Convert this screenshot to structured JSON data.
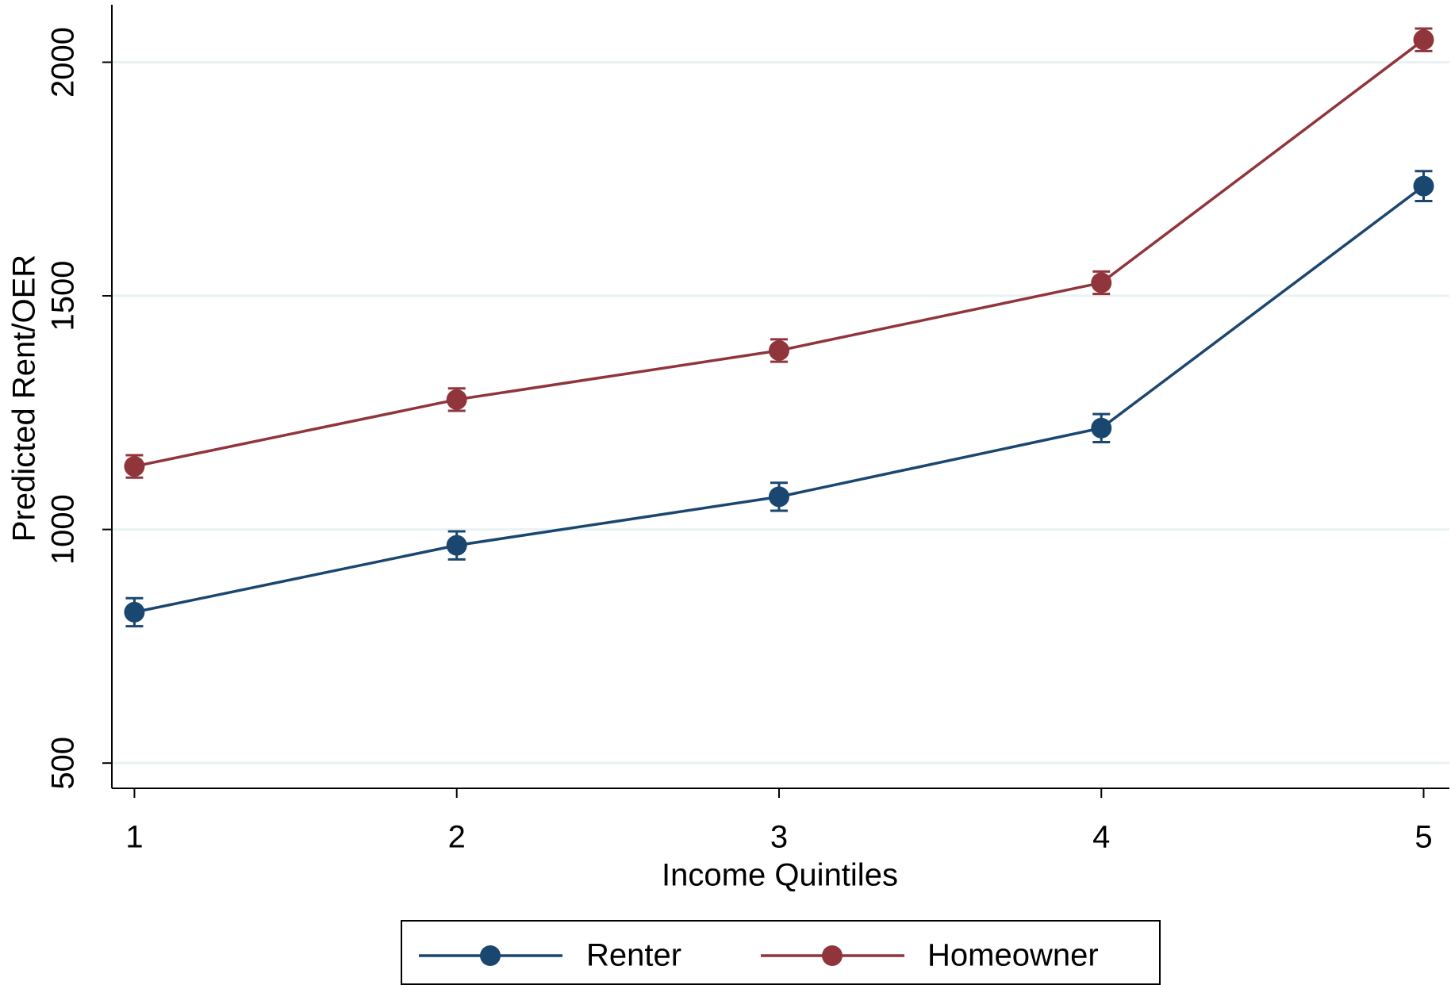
{
  "chart_data": {
    "type": "line",
    "x_label": "Income Quintiles",
    "y_label": "Predicted Rent/OER",
    "x": [
      1,
      2,
      3,
      4,
      5
    ],
    "series": [
      {
        "name": "Renter",
        "color": "#1a476f",
        "values": [
          823,
          966,
          1070,
          1217,
          1735
        ],
        "errors": [
          30,
          30,
          30,
          30,
          32
        ]
      },
      {
        "name": "Homeowner",
        "color": "#90353b",
        "values": [
          1135,
          1278,
          1383,
          1528,
          2048
        ],
        "errors": [
          24,
          24,
          24,
          24,
          24
        ]
      }
    ],
    "xlim": [
      0.93,
      5.08
    ],
    "xticks": [
      1,
      2,
      3,
      4,
      5
    ],
    "ylim": [
      446,
      2123
    ],
    "yticks": [
      500,
      1000,
      1500,
      2000
    ],
    "grid": true,
    "legend": "bottom"
  }
}
